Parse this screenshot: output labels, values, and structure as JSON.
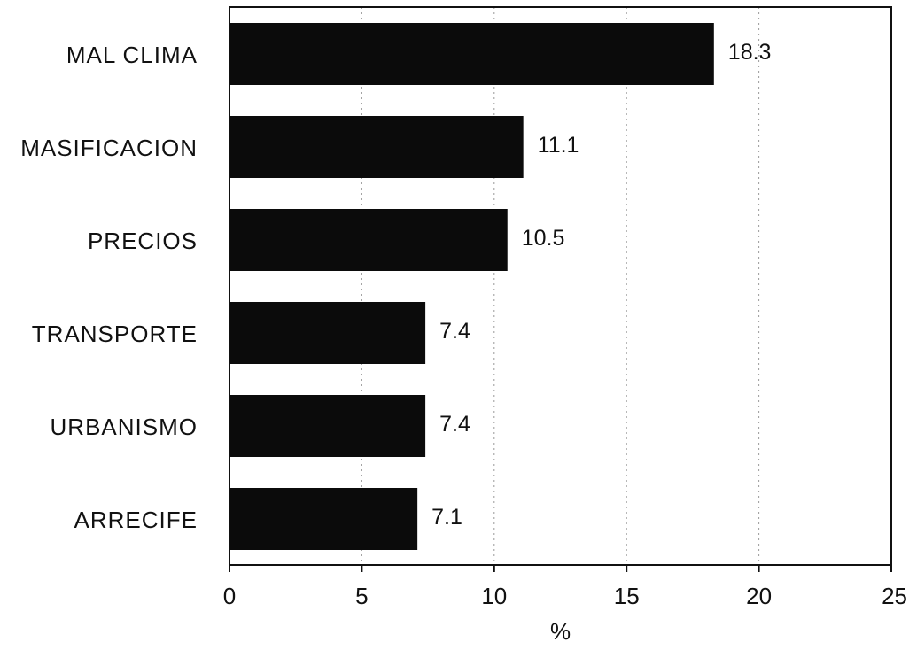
{
  "chart_data": {
    "type": "bar",
    "orientation": "horizontal",
    "categories": [
      "MAL CLIMA",
      "MASIFICACION",
      "PRECIOS",
      "TRANSPORTE",
      "URBANISMO",
      "ARRECIFE"
    ],
    "values": [
      18.3,
      11.1,
      10.5,
      7.4,
      7.4,
      7.1
    ],
    "value_labels": [
      "18.3",
      "11.1",
      "10.5",
      "7.4",
      "7.4",
      "7.1"
    ],
    "xlabel": "%",
    "xlim": [
      0,
      25
    ],
    "xticks": [
      "0",
      "5",
      "10",
      "15",
      "20",
      "25"
    ],
    "grid": "vertical dotted",
    "colors": {
      "bar": "#0b0b0b"
    }
  }
}
